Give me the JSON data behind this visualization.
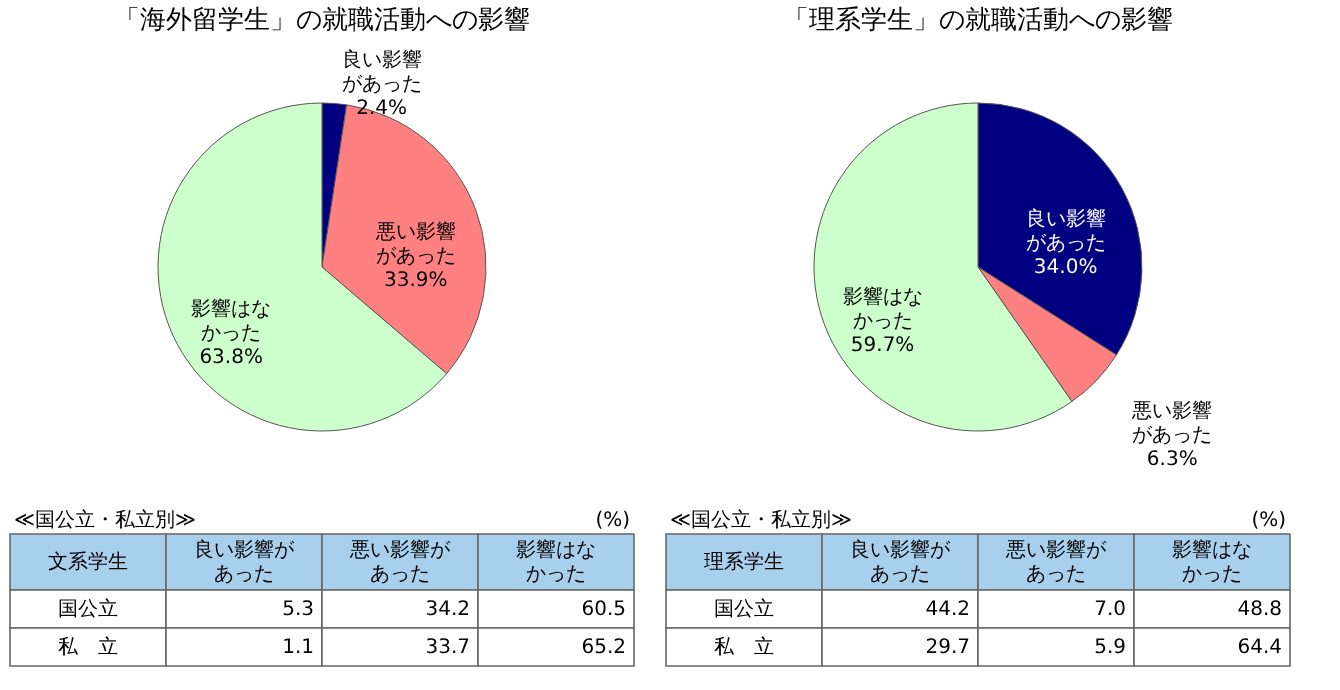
{
  "chart_data": [
    {
      "type": "pie",
      "title": "「海外留学生」の就職活動への影響",
      "categories": [
        "良い影響があった",
        "悪い影響があった",
        "影響はなかった"
      ],
      "values": [
        2.4,
        33.9,
        63.8
      ],
      "value_labels": [
        "2.4%",
        "33.9%",
        "63.8%"
      ],
      "colors": [
        "#000080",
        "#ff8080",
        "#ccffcc"
      ],
      "annotations": [
        "≪国公立・私立別≫",
        "(%)",
        "文系学生",
        "良い影響があった",
        "悪い影響があった",
        "影響はなかった",
        "国公立",
        "5.3",
        "34.2",
        "60.5",
        "私　立",
        "1.1",
        "33.7",
        "65.2"
      ]
    },
    {
      "type": "pie",
      "title": "「理系学生」の就職活動への影響",
      "categories": [
        "良い影響があった",
        "悪い影響があった",
        "影響はなかった"
      ],
      "values": [
        34.0,
        6.3,
        59.7
      ],
      "value_labels": [
        "34.0%",
        "6.3%",
        "59.7%"
      ],
      "colors": [
        "#000080",
        "#ff8080",
        "#ccffcc"
      ],
      "annotations": [
        "≪国公立・私立別≫",
        "(%)",
        "理系学生",
        "良い影響があった",
        "悪い影響があった",
        "影響はなかった",
        "国公立",
        "44.2",
        "7.0",
        "48.8",
        "私　立",
        "29.7",
        "5.9",
        "64.4"
      ]
    }
  ]
}
